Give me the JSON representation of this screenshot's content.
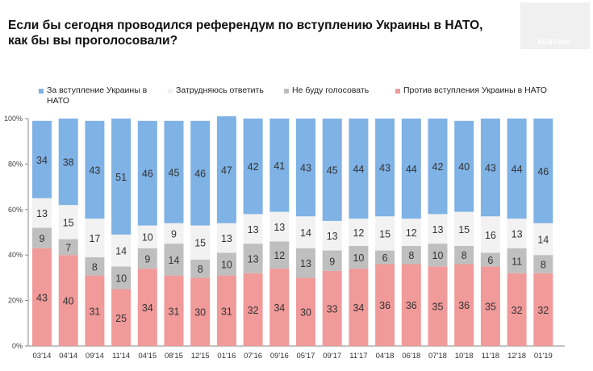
{
  "page": {
    "title_line1": "Если бы сегодня проводился референдум по вступлению Украины в НАТО,",
    "title_line2": "как бы вы проголосовали?",
    "logo_text": "РЕЙТИНГ"
  },
  "legend": [
    {
      "label": "За вступление Украины в НАТО",
      "color": "#7fb2e5"
    },
    {
      "label": "Затрудняюсь ответить",
      "color": "#f2f2f2"
    },
    {
      "label": "Не буду голосовать",
      "color": "#bfbfbf"
    },
    {
      "label": "Против вступления Украины в НАТО",
      "color": "#f19a9a"
    }
  ],
  "chart_data": {
    "type": "bar",
    "stacked": true,
    "categories": [
      "03'14",
      "04'14",
      "09'14",
      "11'14",
      "04'15",
      "08'15",
      "12'15",
      "01'16",
      "07'16",
      "09'16",
      "05'17",
      "09'17",
      "11'17",
      "04'18",
      "06'18",
      "07'18",
      "10'18",
      "11'18",
      "12'18",
      "01'19"
    ],
    "series": [
      {
        "name": "Против вступления Украины в НАТО",
        "color": "#f19a9a",
        "values": [
          43,
          40,
          31,
          25,
          34,
          31,
          30,
          31,
          32,
          34,
          30,
          33,
          34,
          36,
          36,
          35,
          36,
          35,
          32,
          32
        ]
      },
      {
        "name": "Не буду голосовать",
        "color": "#bfbfbf",
        "values": [
          9,
          7,
          8,
          10,
          9,
          14,
          8,
          10,
          13,
          12,
          13,
          9,
          10,
          6,
          8,
          10,
          8,
          6,
          11,
          8
        ]
      },
      {
        "name": "Затрудняюсь ответить",
        "color": "#f2f2f2",
        "values": [
          13,
          15,
          17,
          14,
          10,
          9,
          15,
          13,
          13,
          13,
          14,
          13,
          12,
          15,
          12,
          13,
          15,
          16,
          13,
          14
        ]
      },
      {
        "name": "За вступление Украины в НАТО",
        "color": "#7fb2e5",
        "values": [
          34,
          38,
          43,
          51,
          46,
          45,
          46,
          47,
          42,
          41,
          43,
          45,
          44,
          43,
          44,
          42,
          40,
          43,
          44,
          46
        ]
      }
    ],
    "yticks": [
      "0%",
      "20%",
      "40%",
      "60%",
      "80%",
      "100%"
    ],
    "ylim": [
      0,
      100
    ],
    "grid": false,
    "legend_position": "top"
  }
}
